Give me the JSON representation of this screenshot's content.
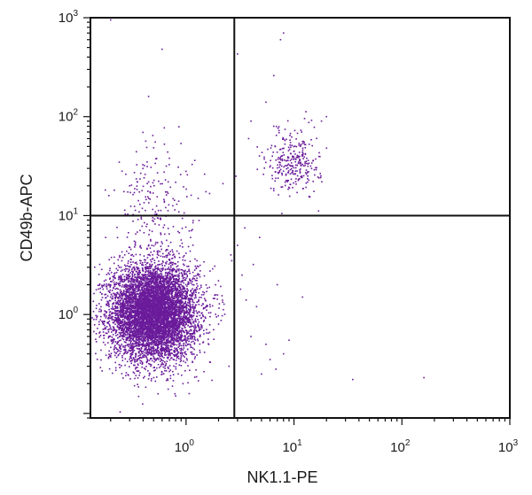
{
  "chart_data": {
    "type": "scatter",
    "xlabel": "NK1.1-PE",
    "ylabel": "CD49b-APC",
    "x_scale": "log",
    "y_scale": "log",
    "xlim": [
      0.13,
      1000
    ],
    "ylim": [
      0.09,
      1000
    ],
    "x_ticks": [
      {
        "value": 1,
        "base": "10",
        "exp": "0"
      },
      {
        "value": 10,
        "base": "10",
        "exp": "1"
      },
      {
        "value": 100,
        "base": "10",
        "exp": "2"
      },
      {
        "value": 1000,
        "base": "10",
        "exp": "3"
      }
    ],
    "y_ticks": [
      {
        "value": 1,
        "base": "10",
        "exp": "0"
      },
      {
        "value": 10,
        "base": "10",
        "exp": "1"
      },
      {
        "value": 100,
        "base": "10",
        "exp": "2"
      },
      {
        "value": 1000,
        "base": "10",
        "exp": "3"
      }
    ],
    "quadrant_gates": {
      "x": 2.8,
      "y": 10
    },
    "point_color": "#6a1b9a",
    "populations": [
      {
        "cx": 0.5,
        "cy": 1.05,
        "sx_decades": 0.2,
        "sy_decades": 0.24,
        "count": 7000
      },
      {
        "cx": 10,
        "cy": 35,
        "sx_decades": 0.12,
        "sy_decades": 0.16,
        "count": 300
      },
      {
        "cx": 0.55,
        "cy": 12,
        "sx_decades": 0.22,
        "sy_decades": 0.35,
        "count": 220
      }
    ],
    "outliers": [
      [
        0.2,
        950
      ],
      [
        0.6,
        480
      ],
      [
        0.45,
        160
      ],
      [
        3.0,
        430
      ],
      [
        3.5,
        1000
      ],
      [
        8.0,
        700
      ],
      [
        7.5,
        600
      ],
      [
        6.5,
        260
      ],
      [
        5.5,
        140
      ],
      [
        4.0,
        90
      ],
      [
        3.8,
        60
      ],
      [
        2.9,
        25
      ],
      [
        2.2,
        21
      ],
      [
        0.7,
        38
      ],
      [
        35,
        0.22
      ],
      [
        160,
        0.23
      ],
      [
        100,
        0.045
      ],
      [
        4.0,
        0.6
      ],
      [
        5.5,
        0.5
      ],
      [
        3.2,
        1.8
      ],
      [
        6.0,
        0.35
      ],
      [
        4.5,
        1.2
      ],
      [
        3.3,
        2.5
      ],
      [
        8.0,
        0.4
      ],
      [
        5.0,
        0.25
      ],
      [
        2.5,
        0.3
      ],
      [
        2.0,
        0.8
      ],
      [
        4.2,
        3.2
      ],
      [
        3.6,
        1.4
      ],
      [
        6.8,
        0.28
      ],
      [
        9.0,
        0.55
      ],
      [
        12,
        1.5
      ],
      [
        7.0,
        2.0
      ],
      [
        18,
        90
      ],
      [
        20,
        100
      ],
      [
        3.0,
        5.0
      ],
      [
        3.5,
        7.5
      ],
      [
        2.6,
        4.0
      ],
      [
        4.8,
        6.0
      ],
      [
        0.25,
        3.0
      ],
      [
        0.18,
        6.0
      ],
      [
        0.3,
        20
      ],
      [
        1.0,
        28
      ],
      [
        1.1,
        6.0
      ],
      [
        1.3,
        2.5
      ]
    ]
  }
}
